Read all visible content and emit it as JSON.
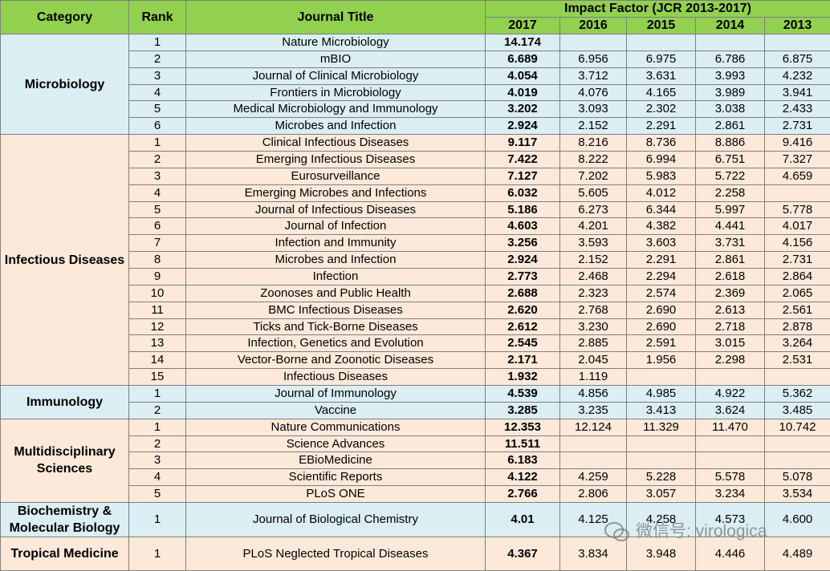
{
  "header": {
    "category": "Category",
    "rank": "Rank",
    "journal_title": "Journal Title",
    "impact_factor": "Impact Factor (JCR 2013-2017)",
    "years": [
      "2017",
      "2016",
      "2015",
      "2014",
      "2013"
    ]
  },
  "groups": [
    {
      "category": "Microbiology",
      "rows": [
        [
          1,
          "Nature Microbiology",
          "14.174",
          null,
          null,
          null,
          null
        ],
        [
          2,
          "mBIO",
          "6.689",
          "6.956",
          "6.975",
          "6.786",
          "6.875"
        ],
        [
          3,
          "Journal of Clinical Microbiology",
          "4.054",
          "3.712",
          "3.631",
          "3.993",
          "4.232"
        ],
        [
          4,
          "Frontiers in Microbiology",
          "4.019",
          "4.076",
          "4.165",
          "3.989",
          "3.941"
        ],
        [
          5,
          "Medical Microbiology and Immunology",
          "3.202",
          "3.093",
          "2.302",
          "3.038",
          "2.433"
        ],
        [
          6,
          "Microbes and Infection",
          "2.924",
          "2.152",
          "2.291",
          "2.861",
          "2.731"
        ]
      ]
    },
    {
      "category": "Infectious Diseases",
      "rows": [
        [
          1,
          "Clinical Infectious Diseases",
          "9.117",
          "8.216",
          "8.736",
          "8.886",
          "9.416"
        ],
        [
          2,
          "Emerging Infectious Diseases",
          "7.422",
          "8.222",
          "6.994",
          "6.751",
          "7.327"
        ],
        [
          3,
          "Eurosurveillance",
          "7.127",
          "7.202",
          "5.983",
          "5.722",
          "4.659"
        ],
        [
          4,
          "Emerging Microbes and Infections",
          "6.032",
          "5.605",
          "4.012",
          "2.258",
          null
        ],
        [
          5,
          "Journal of Infectious Diseases",
          "5.186",
          "6.273",
          "6.344",
          "5.997",
          "5.778"
        ],
        [
          6,
          "Journal of Infection",
          "4.603",
          "4.201",
          "4.382",
          "4.441",
          "4.017"
        ],
        [
          7,
          "Infection and Immunity",
          "3.256",
          "3.593",
          "3.603",
          "3.731",
          "4.156"
        ],
        [
          8,
          "Microbes and Infection",
          "2.924",
          "2.152",
          "2.291",
          "2.861",
          "2.731"
        ],
        [
          9,
          "Infection",
          "2.773",
          "2.468",
          "2.294",
          "2.618",
          "2.864"
        ],
        [
          10,
          "Zoonoses and Public Health",
          "2.688",
          "2.323",
          "2.574",
          "2.369",
          "2.065"
        ],
        [
          11,
          "BMC Infectious Diseases",
          "2.620",
          "2.768",
          "2.690",
          "2.613",
          "2.561"
        ],
        [
          12,
          "Ticks and Tick-Borne Diseases",
          "2.612",
          "3.230",
          "2.690",
          "2.718",
          "2.878"
        ],
        [
          13,
          "Infection, Genetics and Evolution",
          "2.545",
          "2.885",
          "2.591",
          "3.015",
          "3.264"
        ],
        [
          14,
          "Vector-Borne and Zoonotic Diseases",
          "2.171",
          "2.045",
          "1.956",
          "2.298",
          "2.531"
        ],
        [
          15,
          "Infectious Diseases",
          "1.932",
          "1.119",
          null,
          null,
          null
        ]
      ]
    },
    {
      "category": "Immunology",
      "rows": [
        [
          1,
          "Journal of Immunology",
          "4.539",
          "4.856",
          "4.985",
          "4.922",
          "5.362"
        ],
        [
          2,
          "Vaccine",
          "3.285",
          "3.235",
          "3.413",
          "3.624",
          "3.485"
        ]
      ]
    },
    {
      "category": "Multidisciplinary Sciences",
      "rows": [
        [
          1,
          "Nature Communications",
          "12.353",
          "12.124",
          "11.329",
          "11.470",
          "10.742"
        ],
        [
          2,
          "Science Advances",
          "11.511",
          null,
          null,
          null,
          null
        ],
        [
          3,
          "EBioMedicine",
          "6.183",
          null,
          null,
          null,
          null
        ],
        [
          4,
          "Scientific Reports",
          "4.122",
          "4.259",
          "5.228",
          "5.578",
          "5.078"
        ],
        [
          5,
          "PLoS ONE",
          "2.766",
          "2.806",
          "3.057",
          "3.234",
          "3.534"
        ]
      ]
    },
    {
      "category": "Biochemistry & Molecular Biology",
      "rows": [
        [
          1,
          "Journal of Biological Chemistry",
          "4.01",
          "4.125",
          "4.258",
          "4.573",
          "4.600"
        ]
      ]
    },
    {
      "category": "Tropical Medicine",
      "rows": [
        [
          1,
          "PLoS Neglected Tropical Diseases",
          "4.367",
          "3.834",
          "3.948",
          "4.446",
          "4.489"
        ]
      ]
    }
  ],
  "watermark": "微信号: virologica"
}
